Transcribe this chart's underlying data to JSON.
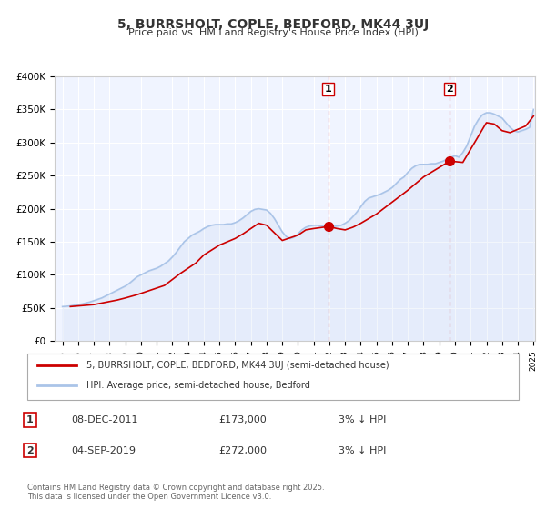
{
  "title": "5, BURRSHOLT, COPLE, BEDFORD, MK44 3UJ",
  "subtitle": "Price paid vs. HM Land Registry's House Price Index (HPI)",
  "xlabel": "",
  "ylabel": "",
  "background_color": "#ffffff",
  "plot_bg_color": "#f0f4ff",
  "grid_color": "#ffffff",
  "hpi_color": "#aac4e8",
  "price_color": "#cc0000",
  "ylim": [
    0,
    400000
  ],
  "yticks": [
    0,
    50000,
    100000,
    150000,
    200000,
    250000,
    300000,
    350000,
    400000
  ],
  "ytick_labels": [
    "£0",
    "£50K",
    "£100K",
    "£150K",
    "£200K",
    "£250K",
    "£300K",
    "£350K",
    "£400K"
  ],
  "year_start": 1995,
  "year_end": 2025,
  "sale1_date": 2011.92,
  "sale1_price": 173000,
  "sale1_label": "1",
  "sale2_date": 2019.67,
  "sale2_price": 272000,
  "sale2_label": "2",
  "legend_line1": "5, BURRSHOLT, COPLE, BEDFORD, MK44 3UJ (semi-detached house)",
  "legend_line2": "HPI: Average price, semi-detached house, Bedford",
  "table_row1": [
    "1",
    "08-DEC-2011",
    "£173,000",
    "3% ↓ HPI"
  ],
  "table_row2": [
    "2",
    "04-SEP-2019",
    "£272,000",
    "3% ↓ HPI"
  ],
  "footnote": "Contains HM Land Registry data © Crown copyright and database right 2025.\nThis data is licensed under the Open Government Licence v3.0.",
  "hpi_data_x": [
    1995.0,
    1995.25,
    1995.5,
    1995.75,
    1996.0,
    1996.25,
    1996.5,
    1996.75,
    1997.0,
    1997.25,
    1997.5,
    1997.75,
    1998.0,
    1998.25,
    1998.5,
    1998.75,
    1999.0,
    1999.25,
    1999.5,
    1999.75,
    2000.0,
    2000.25,
    2000.5,
    2000.75,
    2001.0,
    2001.25,
    2001.5,
    2001.75,
    2002.0,
    2002.25,
    2002.5,
    2002.75,
    2003.0,
    2003.25,
    2003.5,
    2003.75,
    2004.0,
    2004.25,
    2004.5,
    2004.75,
    2005.0,
    2005.25,
    2005.5,
    2005.75,
    2006.0,
    2006.25,
    2006.5,
    2006.75,
    2007.0,
    2007.25,
    2007.5,
    2007.75,
    2008.0,
    2008.25,
    2008.5,
    2008.75,
    2009.0,
    2009.25,
    2009.5,
    2009.75,
    2010.0,
    2010.25,
    2010.5,
    2010.75,
    2011.0,
    2011.25,
    2011.5,
    2011.75,
    2012.0,
    2012.25,
    2012.5,
    2012.75,
    2013.0,
    2013.25,
    2013.5,
    2013.75,
    2014.0,
    2014.25,
    2014.5,
    2014.75,
    2015.0,
    2015.25,
    2015.5,
    2015.75,
    2016.0,
    2016.25,
    2016.5,
    2016.75,
    2017.0,
    2017.25,
    2017.5,
    2017.75,
    2018.0,
    2018.25,
    2018.5,
    2018.75,
    2019.0,
    2019.25,
    2019.5,
    2019.75,
    2020.0,
    2020.25,
    2020.5,
    2020.75,
    2021.0,
    2021.25,
    2021.5,
    2021.75,
    2022.0,
    2022.25,
    2022.5,
    2022.75,
    2023.0,
    2023.25,
    2023.5,
    2023.75,
    2024.0,
    2024.25,
    2024.5,
    2024.75,
    2025.0
  ],
  "hpi_data_y": [
    52000,
    52500,
    53000,
    54000,
    55000,
    56000,
    57500,
    59000,
    61000,
    63000,
    65000,
    68000,
    71000,
    74000,
    77000,
    80000,
    83000,
    87000,
    92000,
    97000,
    100000,
    103000,
    106000,
    108000,
    110000,
    113000,
    117000,
    121000,
    127000,
    134000,
    142000,
    150000,
    155000,
    160000,
    163000,
    166000,
    170000,
    173000,
    175000,
    176000,
    176000,
    176000,
    177000,
    177000,
    179000,
    182000,
    186000,
    191000,
    196000,
    199000,
    200000,
    199000,
    198000,
    193000,
    185000,
    175000,
    165000,
    158000,
    155000,
    157000,
    162000,
    168000,
    172000,
    174000,
    175000,
    175000,
    174000,
    173000,
    172000,
    173000,
    174000,
    175000,
    178000,
    182000,
    188000,
    195000,
    203000,
    211000,
    216000,
    218000,
    220000,
    222000,
    225000,
    228000,
    232000,
    238000,
    244000,
    248000,
    255000,
    261000,
    265000,
    267000,
    267000,
    267000,
    268000,
    268000,
    270000,
    272000,
    275000,
    278000,
    280000,
    278000,
    285000,
    295000,
    310000,
    325000,
    335000,
    342000,
    345000,
    345000,
    343000,
    340000,
    337000,
    330000,
    323000,
    318000,
    316000,
    318000,
    320000,
    323000,
    350000
  ],
  "price_data_x": [
    1995.5,
    1997.0,
    1998.5,
    1999.0,
    1999.75,
    2000.5,
    2001.0,
    2001.5,
    2002.5,
    2003.5,
    2004.0,
    2005.0,
    2006.0,
    2006.5,
    2007.0,
    2007.5,
    2008.0,
    2009.0,
    2010.0,
    2010.5,
    2011.0,
    2011.92,
    2012.5,
    2013.0,
    2013.5,
    2014.0,
    2014.5,
    2015.0,
    2016.0,
    2017.0,
    2017.5,
    2018.0,
    2019.67,
    2020.5,
    2021.5,
    2022.0,
    2022.5,
    2023.0,
    2023.5,
    2024.0,
    2024.5,
    2025.0
  ],
  "price_data_y": [
    52000,
    55000,
    62000,
    65000,
    70000,
    76000,
    80000,
    84000,
    102000,
    118000,
    130000,
    145000,
    155000,
    162000,
    170000,
    178000,
    175000,
    152000,
    160000,
    168000,
    170000,
    173000,
    170000,
    168000,
    172000,
    178000,
    185000,
    192000,
    210000,
    228000,
    238000,
    248000,
    272000,
    270000,
    310000,
    330000,
    328000,
    318000,
    315000,
    320000,
    325000,
    340000
  ]
}
